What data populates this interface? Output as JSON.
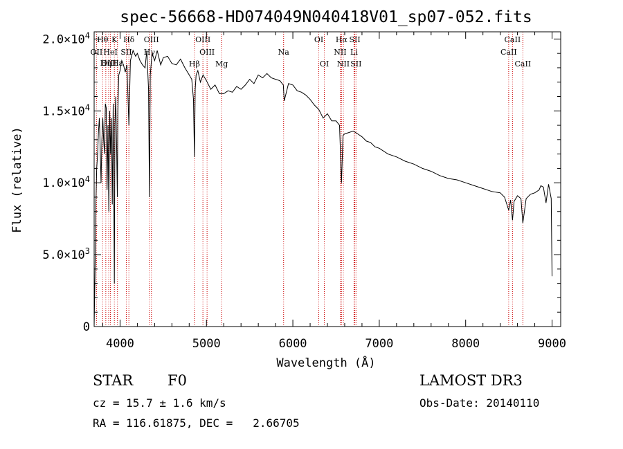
{
  "chart_data": {
    "type": "line",
    "title": "spec-56668-HD074049N040418V01_sp07-052.fits",
    "xlabel": "Wavelength (Å)",
    "ylabel": "Flux (relative)",
    "xlim": [
      3700,
      9100
    ],
    "ylim": [
      0,
      20500
    ],
    "x_ticks": [
      4000,
      5000,
      6000,
      7000,
      8000,
      9000
    ],
    "x_tick_labels": [
      "4000",
      "5000",
      "6000",
      "7000",
      "8000",
      "9000"
    ],
    "y_ticks": [
      0,
      5000,
      10000,
      15000,
      20000
    ],
    "y_tick_labels": [
      {
        "base": "0",
        "exp": ""
      },
      {
        "base": "5.0×10",
        "exp": "3"
      },
      {
        "base": "1.0×10",
        "exp": "4"
      },
      {
        "base": "1.5×10",
        "exp": "4"
      },
      {
        "base": "2.0×10",
        "exp": "4"
      }
    ],
    "series": [
      {
        "name": "spectrum",
        "color": "#000000",
        "x": [
          3700,
          3710,
          3720,
          3730,
          3740,
          3750,
          3760,
          3770,
          3780,
          3790,
          3800,
          3810,
          3820,
          3830,
          3840,
          3850,
          3860,
          3870,
          3880,
          3890,
          3900,
          3910,
          3920,
          3930,
          3934,
          3940,
          3950,
          3960,
          3968,
          3975,
          3985,
          4000,
          4020,
          4040,
          4060,
          4080,
          4102,
          4120,
          4150,
          4180,
          4200,
          4230,
          4260,
          4290,
          4310,
          4330,
          4340,
          4350,
          4370,
          4400,
          4430,
          4470,
          4500,
          4550,
          4600,
          4650,
          4700,
          4750,
          4800,
          4830,
          4850,
          4861,
          4870,
          4880,
          4900,
          4930,
          4960,
          5000,
          5050,
          5100,
          5150,
          5200,
          5250,
          5300,
          5350,
          5400,
          5450,
          5500,
          5550,
          5600,
          5650,
          5700,
          5750,
          5800,
          5850,
          5890,
          5900,
          5950,
          6000,
          6050,
          6100,
          6150,
          6200,
          6250,
          6300,
          6350,
          6400,
          6450,
          6500,
          6540,
          6563,
          6580,
          6600,
          6650,
          6700,
          6750,
          6800,
          6850,
          6900,
          6950,
          7000,
          7100,
          7200,
          7300,
          7400,
          7500,
          7600,
          7700,
          7800,
          7900,
          8000,
          8100,
          8200,
          8300,
          8400,
          8450,
          8498,
          8520,
          8542,
          8560,
          8600,
          8640,
          8662,
          8700,
          8750,
          8800,
          8850,
          8870,
          8900,
          8930,
          8960,
          8990,
          9000
        ],
        "y": [
          0,
          3500,
          8500,
          11000,
          12000,
          13500,
          14500,
          12500,
          10000,
          13000,
          14500,
          13000,
          12000,
          15500,
          15200,
          9500,
          14000,
          8000,
          15000,
          12000,
          14500,
          8500,
          15500,
          7000,
          3000,
          14000,
          16000,
          12500,
          9000,
          15000,
          17500,
          17800,
          18500,
          18200,
          17700,
          18200,
          14000,
          18500,
          19200,
          18800,
          19000,
          18500,
          18200,
          18000,
          19200,
          16500,
          9000,
          17500,
          19000,
          18500,
          19200,
          18200,
          18700,
          18800,
          18300,
          18200,
          18600,
          18000,
          17500,
          17200,
          15800,
          11800,
          16500,
          17500,
          17800,
          17000,
          17500,
          17100,
          16500,
          16800,
          16200,
          16200,
          16400,
          16300,
          16700,
          16500,
          16800,
          17200,
          16900,
          17500,
          17300,
          17600,
          17300,
          17200,
          17100,
          16800,
          15700,
          16900,
          16800,
          16400,
          16300,
          16100,
          15800,
          15400,
          15100,
          14500,
          14800,
          14300,
          14300,
          14000,
          10000,
          13300,
          13400,
          13500,
          13600,
          13400,
          13200,
          12900,
          12800,
          12500,
          12400,
          12000,
          11800,
          11500,
          11300,
          11000,
          10800,
          10500,
          10300,
          10200,
          10000,
          9800,
          9600,
          9400,
          9300,
          9000,
          8100,
          8800,
          7400,
          8700,
          9100,
          8900,
          7200,
          8900,
          9200,
          9300,
          9500,
          9800,
          9700,
          8600,
          9900,
          8900,
          3500
        ]
      }
    ],
    "line_markers": [
      {
        "label": "Hθ",
        "wavelength": 3798,
        "row": 1
      },
      {
        "label": "OII",
        "wavelength": 3727,
        "row": 2
      },
      {
        "label": "OIII",
        "wavelength": 3869,
        "row": 3
      },
      {
        "label": "HeI",
        "wavelength": 3889,
        "row": 2
      },
      {
        "label": "Hη",
        "wavelength": 3835,
        "row": 3
      },
      {
        "label": "K",
        "wavelength": 3934,
        "row": 1
      },
      {
        "label": "SII",
        "wavelength": 4072,
        "row": 2
      },
      {
        "label": "Hε",
        "wavelength": 3970,
        "row": 3
      },
      {
        "label": "Hδ",
        "wavelength": 4102,
        "row": 1
      },
      {
        "label": "OIII",
        "wavelength": 4363,
        "row": 1
      },
      {
        "label": "Hγ",
        "wavelength": 4340,
        "row": 2
      },
      {
        "label": "Hβ",
        "wavelength": 4861,
        "row": 4
      },
      {
        "label": "OIII",
        "wavelength": 4959,
        "row": 1
      },
      {
        "label": "OIII",
        "wavelength": 5007,
        "row": 2
      },
      {
        "label": "Mg",
        "wavelength": 5175,
        "row": 4
      },
      {
        "label": "Na",
        "wavelength": 5893,
        "row": 2
      },
      {
        "label": "OI",
        "wavelength": 6300,
        "row": 1
      },
      {
        "label": "OI",
        "wavelength": 6364,
        "row": 4
      },
      {
        "label": "Hα",
        "wavelength": 6563,
        "row": 1
      },
      {
        "label": "NII",
        "wavelength": 6548,
        "row": 2
      },
      {
        "label": "NII",
        "wavelength": 6584,
        "row": 4
      },
      {
        "label": "SII",
        "wavelength": 6717,
        "row": 1
      },
      {
        "label": "Li",
        "wavelength": 6708,
        "row": 2
      },
      {
        "label": "SII",
        "wavelength": 6731,
        "row": 4
      },
      {
        "label": "CaII",
        "wavelength": 8542,
        "row": 1
      },
      {
        "label": "CaII",
        "wavelength": 8498,
        "row": 2
      },
      {
        "label": "CaII",
        "wavelength": 8662,
        "row": 4
      }
    ],
    "marker_color": "#cc0000"
  },
  "info": {
    "class_label": "STAR",
    "subclass": "F0",
    "survey": "LAMOST DR3",
    "redshift": "cz = 15.7 ± 1.6 km/s",
    "obs_date": "Obs-Date: 20140110",
    "coords": "RA = 116.61875, DEC =   2.66705"
  }
}
